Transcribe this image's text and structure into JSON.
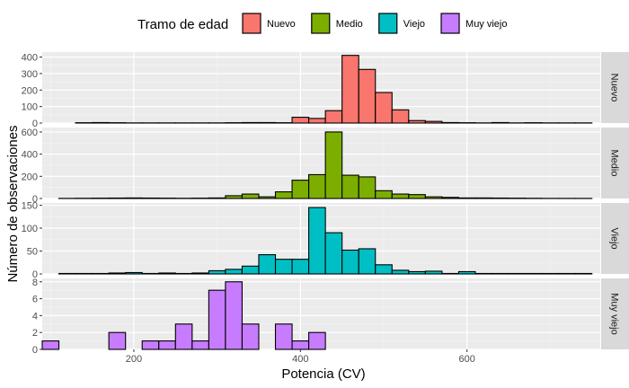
{
  "chart_data": {
    "type": "bar",
    "subtype": "faceted-histogram",
    "title": "",
    "xlabel": "Potencia (CV)",
    "ylabel": "Número de observaciones",
    "xlim": [
      90,
      760
    ],
    "x_ticks": [
      200,
      400,
      600
    ],
    "bin_width": 20,
    "legend": {
      "title": "Tramo de edad",
      "position": "top",
      "entries": [
        {
          "label": "Nuevo",
          "color": "#f8766d"
        },
        {
          "label": "Medio",
          "color": "#7cae00"
        },
        {
          "label": "Viejo",
          "color": "#00bfc4"
        },
        {
          "label": "Muy viejo",
          "color": "#c77cff"
        }
      ]
    },
    "grid": true,
    "panels": [
      {
        "name": "Nuevo",
        "color": "#f8766d",
        "ylim": [
          0,
          430
        ],
        "y_ticks": [
          0,
          100,
          200,
          300,
          400
        ],
        "x": [
          140,
          160,
          180,
          200,
          220,
          240,
          260,
          280,
          300,
          320,
          340,
          360,
          380,
          400,
          420,
          440,
          460,
          480,
          500,
          520,
          540,
          560,
          580,
          600,
          620,
          640,
          660,
          680,
          700,
          720,
          740
        ],
        "values": [
          2,
          3,
          2,
          1,
          1,
          1,
          1,
          1,
          1,
          2,
          3,
          3,
          2,
          35,
          28,
          75,
          410,
          325,
          185,
          80,
          15,
          10,
          3,
          2,
          1,
          3,
          1,
          2,
          1,
          1,
          1
        ]
      },
      {
        "name": "Medio",
        "color": "#7cae00",
        "ylim": [
          0,
          640
        ],
        "y_ticks": [
          0,
          200,
          400,
          600
        ],
        "x": [
          120,
          140,
          160,
          180,
          200,
          220,
          240,
          260,
          280,
          300,
          320,
          340,
          360,
          380,
          400,
          420,
          440,
          460,
          480,
          500,
          520,
          540,
          560,
          580,
          600,
          620,
          640,
          660,
          680,
          700,
          720,
          740
        ],
        "values": [
          1,
          2,
          3,
          4,
          5,
          4,
          3,
          2,
          3,
          5,
          25,
          40,
          15,
          60,
          165,
          215,
          600,
          210,
          195,
          70,
          40,
          35,
          15,
          10,
          5,
          5,
          4,
          3,
          2,
          1,
          1,
          1
        ]
      },
      {
        "name": "Viejo",
        "color": "#00bfc4",
        "ylim": [
          0,
          155
        ],
        "y_ticks": [
          0,
          50,
          100,
          150
        ],
        "x": [
          120,
          140,
          160,
          180,
          200,
          220,
          240,
          260,
          280,
          300,
          320,
          340,
          360,
          380,
          400,
          420,
          440,
          460,
          480,
          500,
          520,
          540,
          560,
          580,
          600,
          620,
          640,
          660,
          680,
          700,
          720,
          740
        ],
        "values": [
          1,
          1,
          1,
          2,
          3,
          1,
          2,
          1,
          2,
          7,
          10,
          17,
          42,
          32,
          32,
          145,
          90,
          52,
          55,
          20,
          8,
          5,
          6,
          1,
          5,
          1,
          1,
          1,
          1,
          1,
          1,
          1
        ]
      },
      {
        "name": "Muy viejo",
        "color": "#c77cff",
        "ylim": [
          0,
          8.4
        ],
        "y_ticks": [
          0,
          2,
          4,
          6,
          8
        ],
        "x": [
          100,
          120,
          140,
          160,
          180,
          200,
          220,
          240,
          260,
          280,
          300,
          320,
          340,
          360,
          380,
          400,
          420,
          440,
          460,
          480,
          500,
          520,
          540,
          560,
          580,
          600,
          620,
          640,
          660,
          680,
          700,
          720,
          740
        ],
        "values": [
          1,
          0,
          0,
          0,
          2,
          0,
          1,
          1,
          3,
          1,
          7,
          8,
          3,
          0,
          3,
          1,
          2,
          0,
          0,
          0,
          0,
          0,
          0,
          0,
          0,
          0,
          0,
          0,
          0,
          0,
          0,
          0,
          0
        ]
      }
    ]
  }
}
